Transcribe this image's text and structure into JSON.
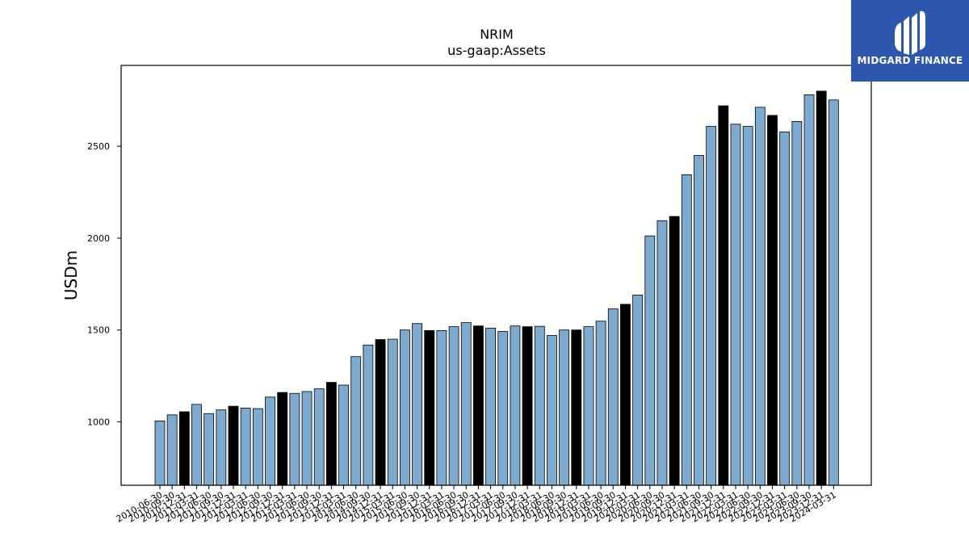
{
  "brand": {
    "name": "MIDGARD FINANCE",
    "bg": "#2c57ad"
  },
  "chart_data": {
    "type": "bar",
    "title": "NRIM",
    "subtitle": "us-gaap:Assets",
    "xlabel": "",
    "ylabel": "USDm",
    "ylim": [
      655,
      2940
    ],
    "yticks": [
      1000,
      1500,
      2000,
      2500
    ],
    "colors": {
      "quarter": "#7eaad0",
      "year_end": "#000000"
    },
    "categories": [
      "2010-06-30",
      "2010-09-30",
      "2010-12-31",
      "2011-03-31",
      "2011-06-30",
      "2011-09-30",
      "2011-12-31",
      "2012-03-31",
      "2012-06-30",
      "2012-09-30",
      "2012-12-31",
      "2013-03-31",
      "2013-06-30",
      "2013-09-30",
      "2013-12-31",
      "2014-03-31",
      "2014-06-30",
      "2014-09-30",
      "2014-12-31",
      "2015-03-31",
      "2015-06-30",
      "2015-09-30",
      "2015-12-31",
      "2016-03-31",
      "2016-06-30",
      "2016-09-30",
      "2016-12-31",
      "2017-03-31",
      "2017-06-30",
      "2017-09-30",
      "2017-12-31",
      "2018-03-31",
      "2018-06-30",
      "2018-09-30",
      "2018-12-31",
      "2019-03-31",
      "2019-06-30",
      "2019-09-30",
      "2019-12-31",
      "2020-03-31",
      "2020-06-30",
      "2020-09-30",
      "2020-12-31",
      "2021-03-31",
      "2021-06-30",
      "2021-09-30",
      "2021-12-31",
      "2022-03-31",
      "2022-06-30",
      "2022-09-30",
      "2022-12-31",
      "2023-03-31",
      "2023-06-30",
      "2023-09-30",
      "2023-12-31",
      "2024-03-31"
    ],
    "values": [
      1005,
      1038,
      1055,
      1095,
      1045,
      1065,
      1085,
      1075,
      1072,
      1135,
      1160,
      1155,
      1165,
      1180,
      1215,
      1200,
      1355,
      1418,
      1448,
      1450,
      1500,
      1535,
      1497,
      1497,
      1518,
      1540,
      1522,
      1510,
      1492,
      1522,
      1518,
      1520,
      1470,
      1500,
      1500,
      1518,
      1548,
      1615,
      1640,
      1690,
      2012,
      2095,
      2118,
      2345,
      2450,
      2608,
      2720,
      2620,
      2608,
      2712,
      2668,
      2578,
      2635,
      2780,
      2800,
      2752
    ]
  }
}
